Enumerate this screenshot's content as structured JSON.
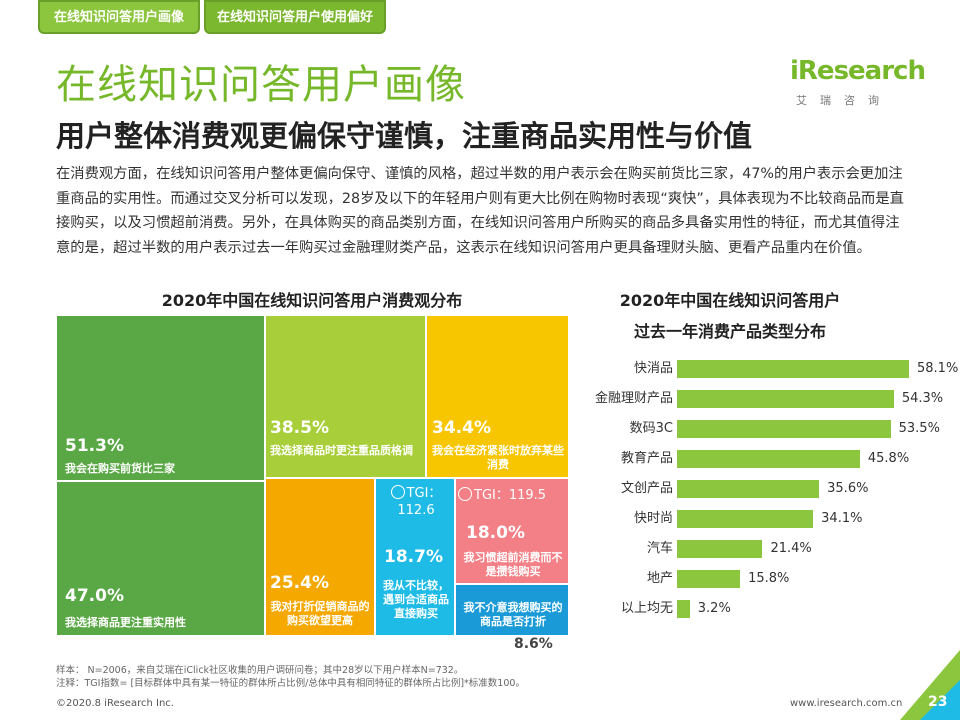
{
  "tabs": [
    "在线知识问答用户画像",
    "在线知识问答用户使用偏好"
  ],
  "title": "在线知识问答用户画像",
  "subtitle": "用户整体消费观更偏保守谨慎，注重商品实用性与价值",
  "logo": {
    "name": "iResearch",
    "sub": "艾瑞咨询"
  },
  "body_text": "在消费观方面，在线知识问答用户整体更偏向保守、谨慎的风格，超过半数的用户表示会在购买前货比三家，47%的用户表示会更加注重商品的实用性。而通过交叉分析可以发现，28岁及以下的年轻用户则有更大比例在购物时表现“爽快”，具体表现为不比较商品而是直接购买，以及习惯超前消费。另外，在具体购买的商品类别方面，在线知识问答用户所购买的商品多具备实用性的特征，而尤其值得注意的是，超过半数的用户表示过去一年购买过金融理财类产品，这表示在线知识问答用户更具备理财头脑、更看产品重内在价值。",
  "colors": {
    "dark_green": "#5aa845",
    "light_green": "#a8cf3a",
    "yellow": "#f7c600",
    "orange": "#f5a800",
    "blue": "#1ebbe6",
    "pink": "#f28086",
    "blue_dark": "#1a9bd7",
    "bar": "#8cc63f",
    "title_green": "#76b82a"
  },
  "chart_data": [
    {
      "type": "treemap",
      "title": "2020年中国在线知识问答用户消费观分布",
      "items": [
        {
          "pct": "51.3%",
          "label": "我会在购买前货比三家",
          "tgi": ""
        },
        {
          "pct": "47.0%",
          "label": "我选择商品更注重实用性",
          "tgi": ""
        },
        {
          "pct": "38.5%",
          "label": "我选择商品时更注重品质格调",
          "tgi": ""
        },
        {
          "pct": "34.4%",
          "label": "我会在经济紧张时放弃某些消费",
          "tgi": ""
        },
        {
          "pct": "25.4%",
          "label": "我对打折促销商品的购买欲望更高",
          "tgi": ""
        },
        {
          "pct": "18.7%",
          "label": "我从不比较，遇到合适商品直接购买",
          "tgi": "TGI：112.6"
        },
        {
          "pct": "18.0%",
          "label": "我习惯超前消费而不是攒钱购买",
          "tgi": "TGI：119.5"
        },
        {
          "pct": "8.6%",
          "label": "我不介意我想购买的商品是否打折",
          "tgi": ""
        }
      ]
    },
    {
      "type": "bar",
      "title_line1": "2020年中国在线知识问答用户",
      "title_line2": "过去一年消费产品类型分布",
      "categories": [
        "快消品",
        "金融理财产品",
        "数码3C",
        "教育产品",
        "文创产品",
        "快时尚",
        "汽车",
        "地产",
        "以上均无"
      ],
      "values": [
        58.1,
        54.3,
        53.5,
        45.8,
        35.6,
        34.1,
        21.4,
        15.8,
        3.2
      ],
      "unit": "%"
    }
  ],
  "notes": [
    "样本： N=2006，来自艾瑞在iClick社区收集的用户调研问卷；其中28岁以下用户样本N=732。",
    "注释：TGI指数= [目标群体中具有某一特征的群体所占比例/总体中具有相同特征的群体所占比例]*标准数100。"
  ],
  "footer": {
    "copyright": "©2020.8 iResearch Inc.",
    "website": "www.iresearch.com.cn",
    "page": "23"
  }
}
